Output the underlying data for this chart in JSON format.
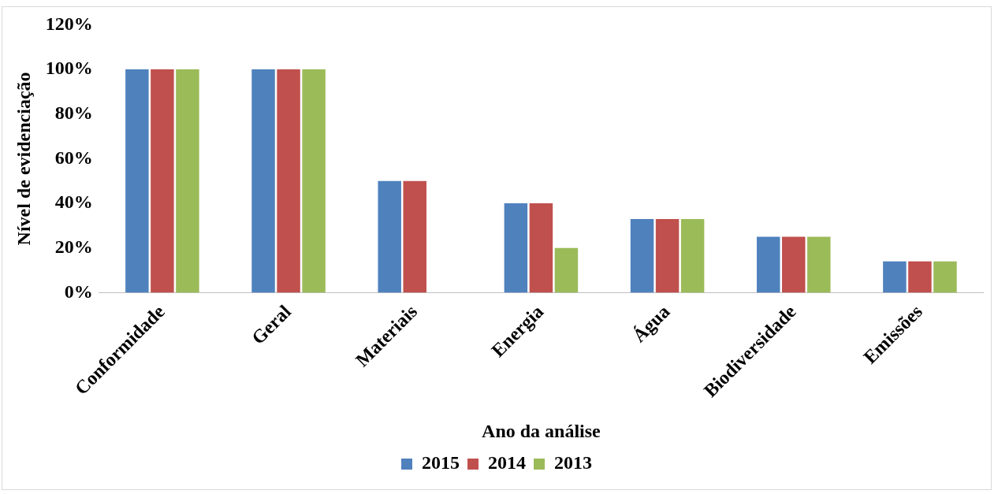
{
  "chart_data": {
    "type": "bar",
    "xlabel": "Ano da análise",
    "ylabel": "Nível de evidenciação",
    "categories": [
      "Conformidade",
      "Geral",
      "Materiais",
      "Energia",
      "Água",
      "Biodiversidade",
      "Emissões"
    ],
    "series": [
      {
        "name": "2015",
        "color": "#4f81bd",
        "values": [
          100,
          100,
          50,
          40,
          33,
          25,
          14
        ]
      },
      {
        "name": "2014",
        "color": "#c0504d",
        "values": [
          100,
          100,
          50,
          40,
          33,
          25,
          14
        ]
      },
      {
        "name": "2013",
        "color": "#9bbb59",
        "values": [
          100,
          100,
          0,
          20,
          33,
          25,
          14
        ]
      }
    ],
    "ylim": [
      0,
      120
    ],
    "yticks": [
      {
        "value": 0,
        "label": "0%"
      },
      {
        "value": 20,
        "label": "20%"
      },
      {
        "value": 40,
        "label": "40%"
      },
      {
        "value": 60,
        "label": "60%"
      },
      {
        "value": 80,
        "label": "80%"
      },
      {
        "value": 100,
        "label": "100%"
      },
      {
        "value": 120,
        "label": "120%"
      }
    ],
    "grid": false,
    "legend": "bottom"
  }
}
